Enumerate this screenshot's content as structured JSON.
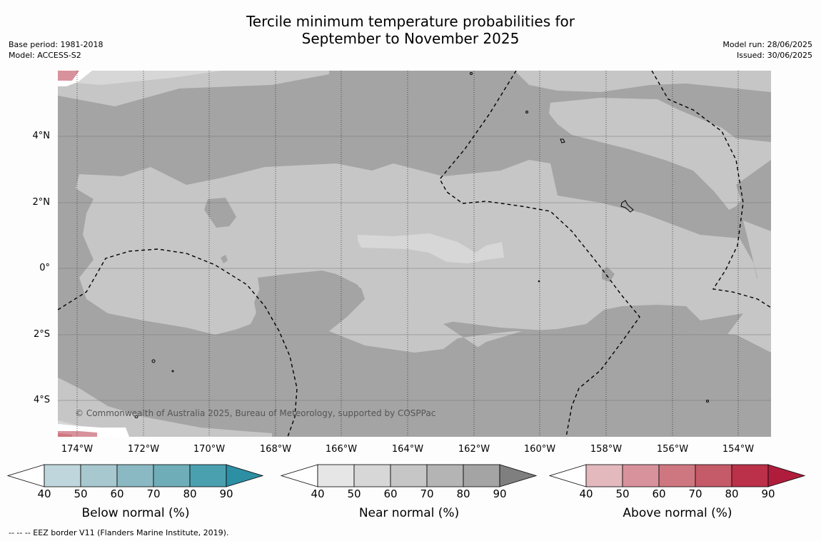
{
  "title": {
    "line1": "Tercile minimum temperature probabilities for",
    "line2": "September to November 2025"
  },
  "meta_left": {
    "base_period": "Base period: 1981-2018",
    "model": "Model: ACCESS-S2"
  },
  "meta_right": {
    "model_run": "Model run: 28/06/2025",
    "issued": "Issued: 30/06/2025"
  },
  "map": {
    "latitude_labels": [
      "4°N",
      "2°N",
      "0°",
      "2°S",
      "4°S"
    ],
    "longitude_labels": [
      "174°W",
      "172°W",
      "170°W",
      "168°W",
      "166°W",
      "164°W",
      "162°W",
      "160°W",
      "158°W",
      "156°W",
      "154°W"
    ],
    "copyright": "© Commonwealth of Australia 2025, Bureau of Meteorology, supported by COSPPac",
    "colors": {
      "near_50": "#d7d7d7",
      "near_60": "#c6c6c6",
      "near_70": "#b4b4b4",
      "near_80": "#a4a4a4",
      "above_50": "#d8929c"
    }
  },
  "colorbars": [
    {
      "name": "below",
      "title": "Below normal (%)",
      "ticks": [
        "40",
        "50",
        "60",
        "70",
        "80",
        "90"
      ],
      "colors": [
        "#bfd6dc",
        "#a6c8ce",
        "#8bb9c3",
        "#6fadb9",
        "#4ba0b0",
        "#2d8fa4"
      ]
    },
    {
      "name": "near",
      "title": "Near normal (%)",
      "ticks": [
        "40",
        "50",
        "60",
        "70",
        "80",
        "90"
      ],
      "colors": [
        "#e6e6e6",
        "#d7d7d7",
        "#c6c6c6",
        "#b4b4b4",
        "#a4a4a4",
        "#7f7f7f"
      ]
    },
    {
      "name": "above",
      "title": "Above normal (%)",
      "ticks": [
        "40",
        "50",
        "60",
        "70",
        "80",
        "90"
      ],
      "colors": [
        "#e3b9be",
        "#d8929c",
        "#ce7780",
        "#c55a68",
        "#bb3149",
        "#b01d3c"
      ]
    }
  ],
  "footer": "-- -- -- EEZ border V11 (Flanders Marine Institute, 2019)."
}
